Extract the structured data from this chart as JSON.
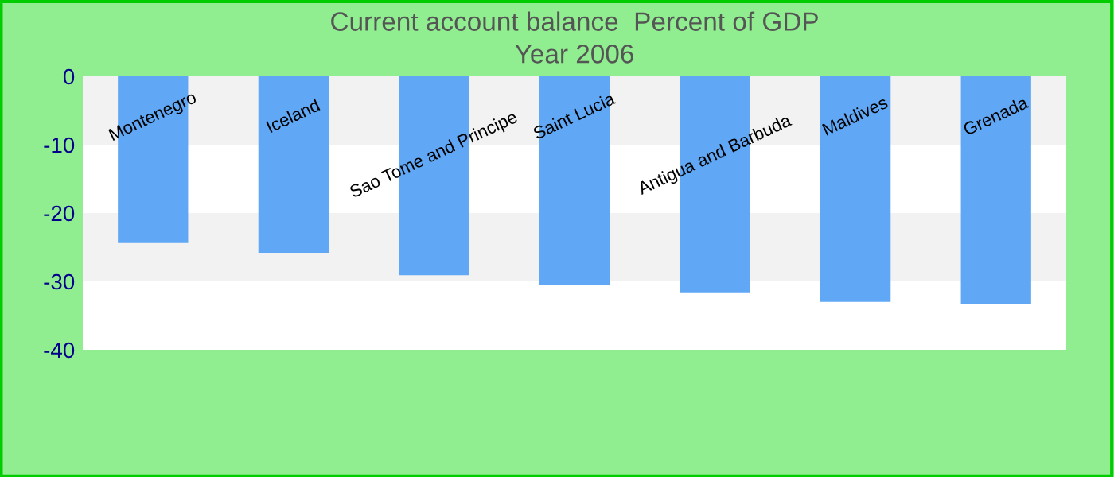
{
  "chart_data": {
    "type": "bar",
    "title": "Current account balance  Percent of GDP\nYear 2006",
    "categories": [
      "Montenegro",
      "Iceland",
      "Sao Tome and Principe",
      "Saint Lucia",
      "Antigua and Barbuda",
      "Maldives",
      "Grenada"
    ],
    "values": [
      -24.4,
      -25.8,
      -29.1,
      -30.5,
      -31.6,
      -33.0,
      -33.3
    ],
    "color": "#60a8f5",
    "ylim": [
      -40,
      0
    ],
    "yticks": [
      0,
      -10,
      -20,
      -30,
      -40
    ],
    "bands": [
      {
        "axis": "y",
        "from": 0,
        "to": -10,
        "color": "#f2f2f2"
      },
      {
        "axis": "y",
        "from": -20,
        "to": -30,
        "color": "#f2f2f2"
      }
    ]
  }
}
